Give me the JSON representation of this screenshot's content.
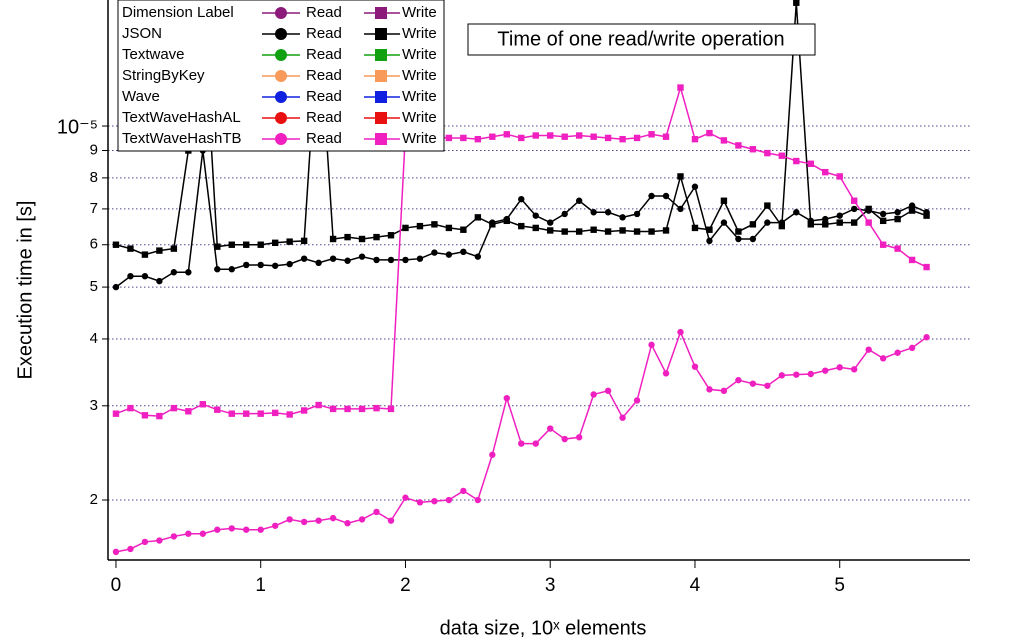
{
  "chart_data": {
    "type": "line",
    "title": "Time of one read/write operation",
    "x_label": "data size, 10ˣ elements",
    "y_label": "Execution time  in [s]",
    "log_y": true,
    "grid": true,
    "legend_position": "upper left",
    "legend_labels": {
      "read": "Read",
      "write": "Write"
    },
    "xlim": [
      -0.055,
      5.9
    ],
    "xticks": [
      0,
      1,
      2,
      3,
      4,
      5
    ],
    "ylim": [
      1.545e-06,
      1.72e-05
    ],
    "yticks": [
      {
        "value": 2e-06,
        "label": "2"
      },
      {
        "value": 3e-06,
        "label": "3"
      },
      {
        "value": 4e-06,
        "label": "4"
      },
      {
        "value": 5e-06,
        "label": "5"
      },
      {
        "value": 6e-06,
        "label": "6"
      },
      {
        "value": 7e-06,
        "label": "7"
      },
      {
        "value": 8e-06,
        "label": "8"
      },
      {
        "value": 9e-06,
        "label": "9"
      },
      {
        "value": 1e-05,
        "label": "10⁻⁵"
      }
    ],
    "x": [
      0,
      0.1,
      0.2,
      0.3,
      0.4,
      0.5,
      0.6,
      0.7,
      0.8,
      0.9,
      1,
      1.1,
      1.2,
      1.3,
      1.4,
      1.5,
      1.6,
      1.7,
      1.8,
      1.9,
      2,
      2.1,
      2.2,
      2.3,
      2.4,
      2.5,
      2.6,
      2.7,
      2.8,
      2.9,
      3,
      3.1,
      3.2,
      3.3,
      3.4,
      3.5,
      3.6,
      3.7,
      3.8,
      3.9,
      4,
      4.1,
      4.2,
      4.3,
      4.4,
      4.5,
      4.6,
      4.7,
      4.8,
      4.9,
      5,
      5.1,
      5.2,
      5.3,
      5.4,
      5.5,
      5.6
    ],
    "series": [
      {
        "name": "Dimension Label",
        "color": "#8b1a7a"
      },
      {
        "name": "JSON",
        "color": "#000000",
        "read": [
          5e-06,
          5.24e-06,
          5.24e-06,
          5.13e-06,
          5.33e-06,
          5.33e-06,
          9e-06,
          5.4e-06,
          5.4e-06,
          5.5e-06,
          5.5e-06,
          5.48e-06,
          5.52e-06,
          5.65e-06,
          5.55e-06,
          5.65e-06,
          5.6e-06,
          5.7e-06,
          5.62e-06,
          5.62e-06,
          5.62e-06,
          5.65e-06,
          5.8e-06,
          5.75e-06,
          5.82e-06,
          5.7e-06,
          6.6e-06,
          6.7e-06,
          7.3e-06,
          6.8e-06,
          6.6e-06,
          6.85e-06,
          7.25e-06,
          6.9e-06,
          6.9e-06,
          6.75e-06,
          6.85e-06,
          7.4e-06,
          7.4e-06,
          7e-06,
          7.7e-06,
          6.1e-06,
          6.6e-06,
          6.15e-06,
          6.15e-06,
          6.6e-06,
          6.6e-06,
          6.9e-06,
          6.65e-06,
          6.7e-06,
          6.8e-06,
          7e-06,
          6.95e-06,
          6.85e-06,
          6.9e-06,
          7.1e-06,
          6.9e-06
        ],
        "write": [
          6e-06,
          5.9e-06,
          5.75e-06,
          5.85e-06,
          5.9e-06,
          9e-06,
          1.7e-05,
          5.95e-06,
          6e-06,
          6e-06,
          6e-06,
          6.05e-06,
          6.08e-06,
          6.1e-06,
          1.6e-05,
          6.15e-06,
          6.2e-06,
          6.15e-06,
          6.2e-06,
          6.25e-06,
          6.45e-06,
          6.5e-06,
          6.55e-06,
          6.45e-06,
          6.4e-06,
          6.75e-06,
          6.55e-06,
          6.65e-06,
          6.5e-06,
          6.45e-06,
          6.38e-06,
          6.35e-06,
          6.35e-06,
          6.4e-06,
          6.35e-06,
          6.38e-06,
          6.35e-06,
          6.35e-06,
          6.38e-06,
          8.05e-06,
          6.45e-06,
          6.4e-06,
          7.25e-06,
          6.35e-06,
          6.55e-06,
          7.1e-06,
          6.5e-06,
          1.7e-05,
          6.55e-06,
          6.55e-06,
          6.6e-06,
          6.6e-06,
          7e-06,
          6.65e-06,
          6.7e-06,
          6.95e-06,
          6.8e-06
        ]
      },
      {
        "name": "Textwave",
        "color": "#10a010"
      },
      {
        "name": "StringByKey",
        "color": "#f79a5a"
      },
      {
        "name": "Wave",
        "color": "#1020e0"
      },
      {
        "name": "TextWaveHashAL",
        "color": "#e81010"
      },
      {
        "name": "TextWaveHashTB",
        "color": "#f020c0",
        "read": [
          1.6e-06,
          1.62e-06,
          1.67e-06,
          1.68e-06,
          1.71e-06,
          1.73e-06,
          1.73e-06,
          1.76e-06,
          1.77e-06,
          1.76e-06,
          1.76e-06,
          1.79e-06,
          1.84e-06,
          1.82e-06,
          1.83e-06,
          1.85e-06,
          1.81e-06,
          1.84e-06,
          1.9e-06,
          1.83e-06,
          2.02e-06,
          1.98e-06,
          1.99e-06,
          2e-06,
          2.08e-06,
          2e-06,
          2.43e-06,
          3.1e-06,
          2.55e-06,
          2.55e-06,
          2.72e-06,
          2.6e-06,
          2.62e-06,
          3.15e-06,
          3.2e-06,
          2.85e-06,
          3.07e-06,
          3.9e-06,
          3.45e-06,
          4.12e-06,
          3.55e-06,
          3.22e-06,
          3.2e-06,
          3.35e-06,
          3.3e-06,
          3.27e-06,
          3.42e-06,
          3.43e-06,
          3.44e-06,
          3.49e-06,
          3.54e-06,
          3.51e-06,
          3.82e-06,
          3.68e-06,
          3.77e-06,
          3.85e-06,
          4.03e-06
        ],
        "write": [
          2.9e-06,
          2.97e-06,
          2.88e-06,
          2.87e-06,
          2.97e-06,
          2.93e-06,
          3.02e-06,
          2.95e-06,
          2.9e-06,
          2.9e-06,
          2.9e-06,
          2.91e-06,
          2.89e-06,
          2.94e-06,
          3.01e-06,
          2.96e-06,
          2.96e-06,
          2.96e-06,
          2.97e-06,
          2.96e-06,
          9.7e-06,
          9.6e-06,
          9.55e-06,
          9.5e-06,
          9.5e-06,
          9.45e-06,
          9.55e-06,
          9.65e-06,
          9.5e-06,
          9.6e-06,
          9.6e-06,
          9.55e-06,
          9.6e-06,
          9.55e-06,
          9.5e-06,
          9.45e-06,
          9.5e-06,
          9.65e-06,
          9.55e-06,
          1.18e-05,
          9.45e-06,
          9.7e-06,
          9.4e-06,
          9.2e-06,
          9.05e-06,
          8.9e-06,
          8.8e-06,
          8.6e-06,
          8.5e-06,
          8.2e-06,
          8.05e-06,
          7.25e-06,
          6.6e-06,
          6e-06,
          5.9e-06,
          5.62e-06,
          5.45e-06
        ]
      }
    ]
  }
}
